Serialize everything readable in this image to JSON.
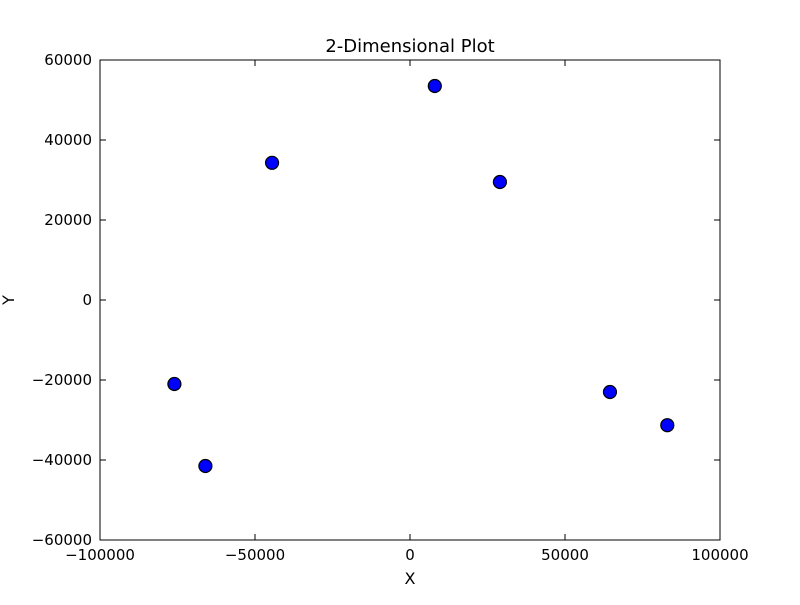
{
  "chart_data": {
    "type": "scatter",
    "title": "2-Dimensional Plot",
    "xlabel": "X",
    "ylabel": "Y",
    "xlim": [
      -100000,
      100000
    ],
    "ylim": [
      -60000,
      60000
    ],
    "x_ticks": [
      -100000,
      -50000,
      0,
      50000,
      100000
    ],
    "x_tick_labels": [
      "−100000",
      "−50000",
      "0",
      "50000",
      "100000"
    ],
    "y_ticks": [
      -60000,
      -40000,
      -20000,
      0,
      20000,
      40000,
      60000
    ],
    "y_tick_labels": [
      "−60000",
      "−40000",
      "−20000",
      "0",
      "20000",
      "40000",
      "60000"
    ],
    "grid": false,
    "marker_color": "#0000ff",
    "marker_edge_color": "#000000",
    "points": [
      {
        "x": 8000,
        "y": 53500
      },
      {
        "x": -44500,
        "y": 34300
      },
      {
        "x": 29000,
        "y": 29500
      },
      {
        "x": -76000,
        "y": -21000
      },
      {
        "x": 64500,
        "y": -23000
      },
      {
        "x": -66000,
        "y": -41500
      },
      {
        "x": 83000,
        "y": -31300
      }
    ]
  }
}
